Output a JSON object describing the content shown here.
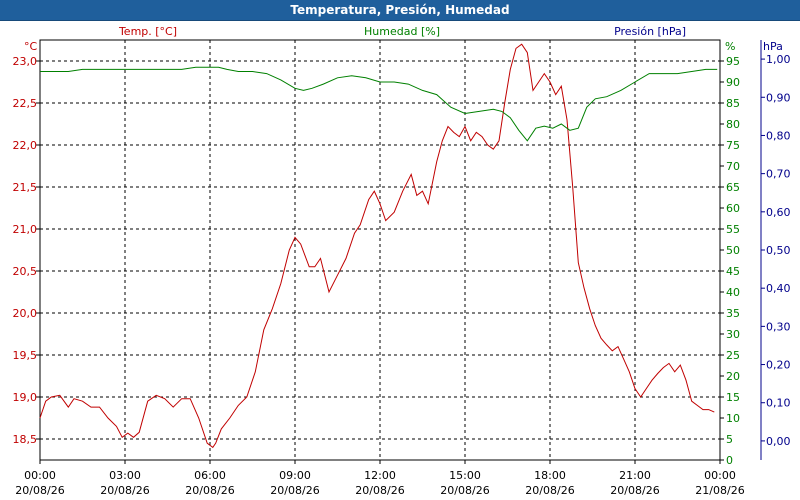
{
  "window": {
    "title": "Temperatura, Presión, Humedad"
  },
  "chart_data": {
    "type": "line",
    "title": "Temperatura, Presión, Humedad",
    "grid": true,
    "colors": {
      "temperature": "#c00000",
      "humidity": "#008000",
      "pressure": "#00008b",
      "grid": "#000000",
      "title_bg": "#1f5f9c"
    },
    "axes": {
      "temperature": {
        "label": "Temp. [°C]",
        "unit": "°C",
        "min": 18.25,
        "max": 23.25,
        "ticks": [
          "18,5",
          "19,0",
          "19,5",
          "20,0",
          "20,5",
          "21,0",
          "21,5",
          "22,0",
          "22,5",
          "23,0"
        ],
        "tick_values": [
          18.5,
          19.0,
          19.5,
          20.0,
          20.5,
          21.0,
          21.5,
          22.0,
          22.5,
          23.0
        ]
      },
      "humidity": {
        "label": "Humedad [%]",
        "unit": "%",
        "min": 0,
        "max": 100,
        "ticks": [
          "0",
          "5",
          "10",
          "15",
          "20",
          "25",
          "30",
          "35",
          "40",
          "45",
          "50",
          "55",
          "60",
          "65",
          "70",
          "75",
          "80",
          "85",
          "90",
          "95"
        ],
        "tick_values": [
          0,
          5,
          10,
          15,
          20,
          25,
          30,
          35,
          40,
          45,
          50,
          55,
          60,
          65,
          70,
          75,
          80,
          85,
          90,
          95
        ]
      },
      "pressure": {
        "label": "Presión [hPa]",
        "unit": "hPa",
        "min": -0.05,
        "max": 1.05,
        "ticks": [
          "0,00",
          "0,10",
          "0,20",
          "0,30",
          "0,40",
          "0,50",
          "0,60",
          "0,70",
          "0,80",
          "0,90",
          "1,00"
        ],
        "tick_values": [
          0,
          0.1,
          0.2,
          0.3,
          0.4,
          0.5,
          0.6,
          0.7,
          0.8,
          0.9,
          1.0
        ]
      },
      "x": {
        "min_hours": 0,
        "max_hours": 24,
        "ticks": [
          {
            "time": "00:00",
            "date": "20/08/26"
          },
          {
            "time": "03:00",
            "date": "20/08/26"
          },
          {
            "time": "06:00",
            "date": "20/08/26"
          },
          {
            "time": "09:00",
            "date": "20/08/26"
          },
          {
            "time": "12:00",
            "date": "20/08/26"
          },
          {
            "time": "15:00",
            "date": "20/08/26"
          },
          {
            "time": "18:00",
            "date": "20/08/26"
          },
          {
            "time": "21:00",
            "date": "20/08/26"
          },
          {
            "time": "00:00",
            "date": "21/08/26"
          }
        ]
      }
    },
    "series": [
      {
        "name": "Temp. [°C]",
        "axis": "temperature",
        "x": [
          0,
          0.2,
          0.4,
          0.7,
          1.0,
          1.2,
          1.5,
          1.8,
          2.1,
          2.4,
          2.7,
          2.9,
          3.1,
          3.3,
          3.5,
          3.8,
          4.1,
          4.4,
          4.7,
          5.0,
          5.3,
          5.6,
          5.9,
          6.1,
          6.2,
          6.4,
          6.7,
          7.0,
          7.3,
          7.6,
          7.9,
          8.2,
          8.5,
          8.8,
          9.0,
          9.2,
          9.5,
          9.7,
          9.9,
          10.2,
          10.5,
          10.8,
          11.1,
          11.3,
          11.6,
          11.8,
          12.0,
          12.2,
          12.5,
          12.8,
          13.1,
          13.3,
          13.5,
          13.7,
          14.0,
          14.2,
          14.4,
          14.6,
          14.8,
          15.0,
          15.2,
          15.4,
          15.6,
          15.8,
          16.0,
          16.2,
          16.4,
          16.6,
          16.8,
          17.0,
          17.2,
          17.4,
          17.6,
          17.8,
          18.0,
          18.2,
          18.4,
          18.6,
          18.8,
          19.0,
          19.2,
          19.4,
          19.6,
          19.8,
          20.0,
          20.2,
          20.4,
          20.6,
          20.8,
          21.0,
          21.2,
          21.4,
          21.6,
          21.8,
          22.0,
          22.2,
          22.4,
          22.6,
          22.8,
          23.0,
          23.2,
          23.4,
          23.6,
          23.8
        ],
        "values": [
          18.75,
          18.95,
          19.0,
          19.02,
          18.88,
          18.98,
          18.95,
          18.88,
          18.88,
          18.75,
          18.65,
          18.52,
          18.57,
          18.52,
          18.58,
          18.95,
          19.02,
          18.98,
          18.88,
          18.98,
          18.98,
          18.75,
          18.45,
          18.4,
          18.45,
          18.62,
          18.75,
          18.9,
          19.0,
          19.3,
          19.8,
          20.05,
          20.35,
          20.75,
          20.9,
          20.82,
          20.55,
          20.55,
          20.65,
          20.25,
          20.45,
          20.65,
          20.95,
          21.05,
          21.35,
          21.45,
          21.3,
          21.1,
          21.2,
          21.45,
          21.65,
          21.4,
          21.45,
          21.3,
          21.8,
          22.05,
          22.22,
          22.15,
          22.1,
          22.22,
          22.05,
          22.15,
          22.1,
          22.0,
          21.95,
          22.05,
          22.5,
          22.9,
          23.15,
          23.2,
          23.1,
          22.65,
          22.75,
          22.85,
          22.75,
          22.6,
          22.7,
          22.3,
          21.5,
          20.6,
          20.3,
          20.05,
          19.85,
          19.7,
          19.62,
          19.55,
          19.6,
          19.45,
          19.3,
          19.1,
          19.0,
          19.1,
          19.2,
          19.28,
          19.35,
          19.4,
          19.3,
          19.38,
          19.2,
          18.95,
          18.9,
          18.85,
          18.85,
          18.82
        ]
      },
      {
        "name": "Humedad [%]",
        "axis": "humidity",
        "x": [
          0,
          0.5,
          1.0,
          1.5,
          2.0,
          2.5,
          3.0,
          3.5,
          4.0,
          4.5,
          5.0,
          5.5,
          6.0,
          6.3,
          6.6,
          7.0,
          7.5,
          8.0,
          8.5,
          9.0,
          9.3,
          9.6,
          10.0,
          10.5,
          11.0,
          11.5,
          12.0,
          12.5,
          13.0,
          13.5,
          14.0,
          14.5,
          15.0,
          15.5,
          16.0,
          16.3,
          16.6,
          16.9,
          17.2,
          17.5,
          17.8,
          18.1,
          18.4,
          18.7,
          19.0,
          19.3,
          19.6,
          20.0,
          20.5,
          21.0,
          21.5,
          22.0,
          22.5,
          23.0,
          23.5,
          23.9
        ],
        "values": [
          92.5,
          92.5,
          92.5,
          93,
          93,
          93,
          93,
          93,
          93,
          93,
          93,
          93.5,
          93.5,
          93.5,
          93,
          92.5,
          92.5,
          92,
          90.5,
          88.5,
          88,
          88.5,
          89.5,
          91,
          91.5,
          91,
          90,
          90,
          89.5,
          88,
          87,
          84,
          82.5,
          83,
          83.5,
          83,
          81.5,
          78.5,
          76,
          79,
          79.5,
          79,
          80,
          78.5,
          79,
          84,
          86,
          86.5,
          88,
          90,
          92,
          92,
          92,
          92.5,
          93,
          93
        ]
      },
      {
        "name": "Presión [hPa]",
        "axis": "pressure",
        "x": [],
        "values": []
      }
    ]
  }
}
